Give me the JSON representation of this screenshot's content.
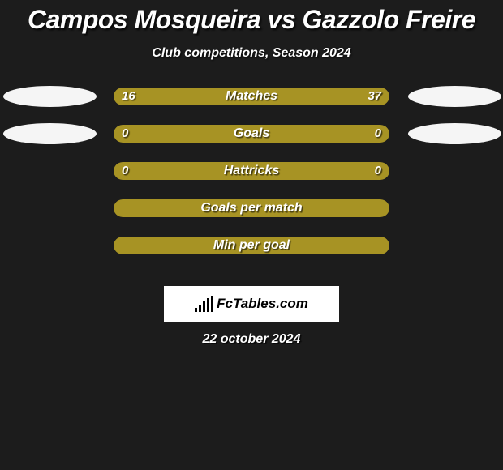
{
  "title": "Campos Mosqueira vs Gazzolo Freire",
  "subtitle": "Club competitions, Season 2024",
  "date": "22 october 2024",
  "colors": {
    "player_left": "#a79324",
    "player_right": "#a79324",
    "empty_bar": "#a79324",
    "avatar": "#f5f5f5",
    "background": "#1c1c1c"
  },
  "logo": {
    "text": "FcTables.com"
  },
  "stats": [
    {
      "label": "Matches",
      "left_value": "16",
      "right_value": "37",
      "left_pct": 30,
      "right_pct": 70,
      "show_avatars": true
    },
    {
      "label": "Goals",
      "left_value": "0",
      "right_value": "0",
      "left_pct": 50,
      "right_pct": 50,
      "show_avatars": true
    },
    {
      "label": "Hattricks",
      "left_value": "0",
      "right_value": "0",
      "left_pct": 50,
      "right_pct": 50,
      "show_avatars": false
    },
    {
      "label": "Goals per match",
      "left_value": "",
      "right_value": "",
      "left_pct": 100,
      "right_pct": 0,
      "full": true,
      "show_avatars": false
    },
    {
      "label": "Min per goal",
      "left_value": "",
      "right_value": "",
      "left_pct": 100,
      "right_pct": 0,
      "full": true,
      "show_avatars": false
    }
  ]
}
